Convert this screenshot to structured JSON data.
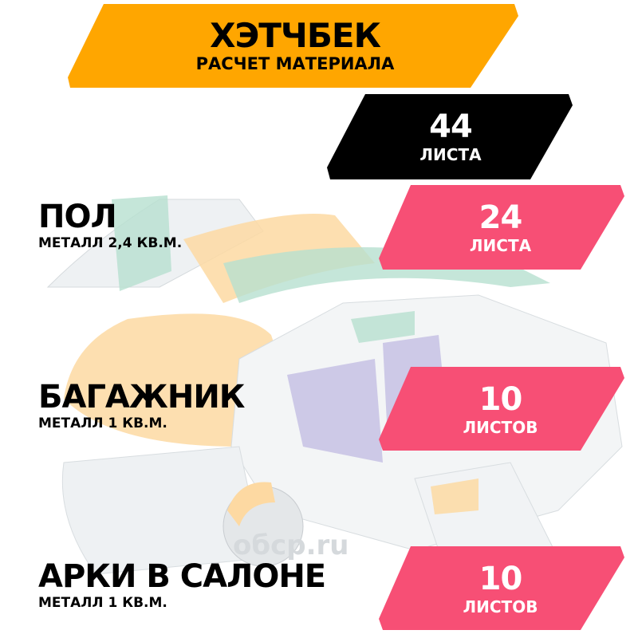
{
  "header": {
    "title": "ХЭТЧБЕК",
    "subtitle": "РАСЧЕТ МАТЕРИАЛА",
    "color": "#FFA600"
  },
  "total": {
    "count": "44",
    "unit": "ЛИСТА",
    "color": "#000000"
  },
  "sections": [
    {
      "title": "ПОЛ",
      "detail": "МЕТАЛЛ 2,4 КВ.М.",
      "count": "24",
      "unit": "ЛИСТА"
    },
    {
      "title": "БАГАЖНИК",
      "detail": "МЕТАЛЛ 1 КВ.М.",
      "count": "10",
      "unit": "ЛИСТОВ"
    },
    {
      "title": "АРКИ В САЛОНЕ",
      "detail": "МЕТАЛЛ 1 КВ.М.",
      "count": "10",
      "unit": "ЛИСТОВ"
    }
  ],
  "badge_color": "#F74F75",
  "watermark": "обср.ru"
}
